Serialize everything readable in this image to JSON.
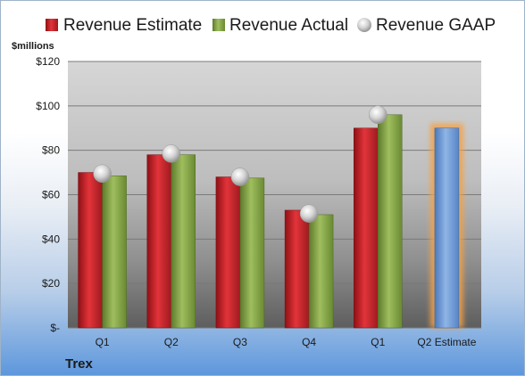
{
  "chart_data": {
    "type": "bar",
    "title": "",
    "ylabel": "$millions",
    "company": "Trex",
    "categories": [
      "Q1",
      "Q2",
      "Q3",
      "Q4",
      "Q1",
      "Q2 Estimate"
    ],
    "ylim": [
      0,
      120
    ],
    "yticks": [
      0,
      20,
      40,
      60,
      80,
      100,
      120
    ],
    "ytick_labels": [
      "$-",
      "$20",
      "$40",
      "$60",
      "$80",
      "$100",
      "$120"
    ],
    "grid": true,
    "legend_position": "top",
    "series": [
      {
        "name": "Revenue Estimate",
        "kind": "bar",
        "color": "#c0262c",
        "values": [
          70,
          78,
          68,
          53,
          90,
          null
        ]
      },
      {
        "name": "Revenue Actual",
        "kind": "bar",
        "color": "#7e9e3e",
        "values": [
          68.5,
          78,
          67.5,
          51,
          96,
          null
        ]
      },
      {
        "name": "Revenue GAAP",
        "kind": "marker",
        "color": "#c8c8c8",
        "values": [
          69.5,
          78.5,
          68,
          51.5,
          96,
          null
        ]
      }
    ],
    "estimate_bar": {
      "category": "Q2 Estimate",
      "value": 90,
      "color": "#6d9bd6",
      "highlight": "#f3a24a"
    }
  }
}
